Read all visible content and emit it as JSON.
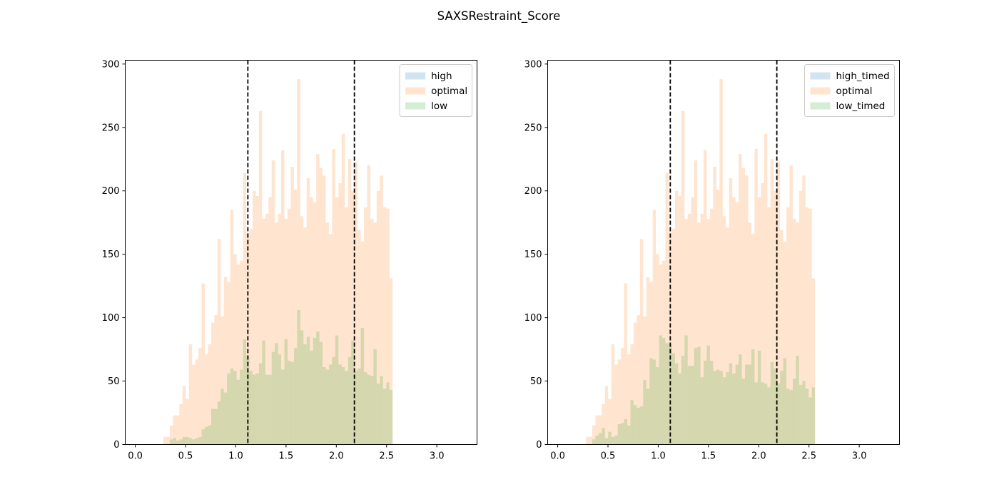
{
  "figure": {
    "title": "SAXSRestraint_Score"
  },
  "colors": {
    "high": "#1f77b4",
    "optimal": "#ff7f0e",
    "low": "#2ca02c",
    "threshold_line": "#000000",
    "bar_alpha": 0.2
  },
  "chart_data": [
    {
      "type": "histogram",
      "title": "",
      "xlabel": "",
      "ylabel": "",
      "xlim": [
        -0.1,
        3.4
      ],
      "ylim": [
        0,
        303
      ],
      "xticks": [
        "0.0",
        "0.5",
        "1.0",
        "1.5",
        "2.0",
        "2.5",
        "3.0"
      ],
      "yticks": [
        "0",
        "50",
        "100",
        "150",
        "200",
        "250",
        "300"
      ],
      "grid": false,
      "legend_position": "upper right",
      "bin_range": [
        0.28,
        2.56
      ],
      "bin_count": 72,
      "thresholds": [
        1.12,
        2.18
      ],
      "series": [
        {
          "name": "high",
          "color": "#1f77b4",
          "values": [
            0,
            0,
            0,
            0,
            0,
            0,
            0,
            0,
            0,
            0,
            0,
            0,
            0,
            0,
            0,
            0,
            0,
            0,
            0,
            0,
            0,
            0,
            0,
            0,
            0,
            0,
            0,
            0,
            0,
            0,
            0,
            0,
            0,
            0,
            0,
            0,
            0,
            0,
            0,
            0,
            0,
            0,
            0,
            0,
            0,
            0,
            0,
            0,
            0,
            0,
            0,
            0,
            0,
            0,
            0,
            0,
            0,
            0,
            0,
            0,
            0,
            0,
            0,
            0,
            0,
            0,
            0,
            0,
            0,
            0,
            0,
            0
          ]
        },
        {
          "name": "optimal",
          "color": "#ff7f0e",
          "values": [
            6,
            6,
            15,
            23,
            23,
            32,
            46,
            36,
            79,
            63,
            67,
            76,
            127,
            71,
            79,
            96,
            102,
            162,
            101,
            132,
            128,
            185,
            150,
            142,
            145,
            214,
            167,
            170,
            200,
            196,
            263,
            178,
            182,
            195,
            224,
            175,
            182,
            232,
            178,
            186,
            219,
            201,
            288,
            180,
            171,
            210,
            195,
            191,
            229,
            218,
            212,
            175,
            166,
            233,
            195,
            206,
            245,
            187,
            225,
            200,
            223,
            169,
            160,
            187,
            220,
            178,
            175,
            200,
            212,
            187,
            186,
            131
          ]
        },
        {
          "name": "low",
          "color": "#2ca02c",
          "values": [
            0,
            0,
            4,
            5,
            3,
            4,
            6,
            6,
            5,
            4,
            5,
            6,
            12,
            14,
            15,
            28,
            28,
            34,
            44,
            41,
            56,
            60,
            58,
            51,
            59,
            83,
            70,
            58,
            55,
            56,
            64,
            82,
            55,
            55,
            73,
            80,
            71,
            59,
            83,
            66,
            65,
            76,
            106,
            90,
            79,
            85,
            74,
            84,
            89,
            81,
            61,
            59,
            63,
            69,
            86,
            63,
            61,
            58,
            69,
            82,
            58,
            60,
            92,
            57,
            55,
            54,
            75,
            48,
            54,
            44,
            49,
            43
          ]
        }
      ]
    },
    {
      "type": "histogram",
      "title": "",
      "xlabel": "",
      "ylabel": "",
      "xlim": [
        -0.1,
        3.4
      ],
      "ylim": [
        0,
        303
      ],
      "xticks": [
        "0.0",
        "0.5",
        "1.0",
        "1.5",
        "2.0",
        "2.5",
        "3.0"
      ],
      "yticks": [
        "0",
        "50",
        "100",
        "150",
        "200",
        "250",
        "300"
      ],
      "grid": false,
      "legend_position": "upper right",
      "bin_range": [
        0.28,
        2.56
      ],
      "bin_count": 72,
      "thresholds": [
        1.12,
        2.18
      ],
      "series": [
        {
          "name": "high_timed",
          "color": "#1f77b4",
          "values": [
            0,
            0,
            0,
            0,
            0,
            0,
            0,
            0,
            0,
            0,
            0,
            0,
            0,
            0,
            0,
            0,
            0,
            0,
            0,
            0,
            0,
            0,
            0,
            0,
            0,
            0,
            0,
            0,
            0,
            0,
            0,
            0,
            0,
            0,
            0,
            0,
            0,
            0,
            0,
            0,
            0,
            0,
            0,
            0,
            0,
            0,
            0,
            0,
            0,
            0,
            0,
            0,
            0,
            0,
            0,
            0,
            0,
            0,
            0,
            0,
            0,
            0,
            0,
            0,
            0,
            0,
            0,
            0,
            0,
            0,
            0,
            0
          ]
        },
        {
          "name": "optimal",
          "color": "#ff7f0e",
          "values": [
            6,
            6,
            15,
            23,
            23,
            32,
            46,
            36,
            79,
            63,
            67,
            76,
            127,
            71,
            79,
            96,
            102,
            162,
            101,
            132,
            128,
            185,
            150,
            142,
            145,
            214,
            167,
            170,
            200,
            196,
            263,
            178,
            182,
            195,
            224,
            175,
            182,
            232,
            178,
            186,
            219,
            201,
            288,
            180,
            171,
            210,
            195,
            191,
            229,
            218,
            212,
            175,
            166,
            233,
            195,
            206,
            245,
            187,
            225,
            200,
            223,
            169,
            160,
            187,
            220,
            178,
            175,
            200,
            212,
            187,
            186,
            131
          ]
        },
        {
          "name": "low_timed",
          "color": "#2ca02c",
          "values": [
            0,
            0,
            4,
            7,
            9,
            13,
            5,
            10,
            6,
            7,
            16,
            17,
            20,
            15,
            35,
            31,
            29,
            30,
            51,
            44,
            68,
            67,
            61,
            86,
            84,
            80,
            79,
            72,
            64,
            56,
            70,
            86,
            62,
            62,
            76,
            77,
            53,
            66,
            78,
            66,
            58,
            59,
            58,
            53,
            57,
            64,
            56,
            63,
            71,
            52,
            63,
            63,
            75,
            49,
            74,
            49,
            48,
            45,
            65,
            60,
            48,
            58,
            68,
            44,
            43,
            52,
            70,
            47,
            50,
            44,
            37,
            45
          ]
        }
      ]
    }
  ]
}
